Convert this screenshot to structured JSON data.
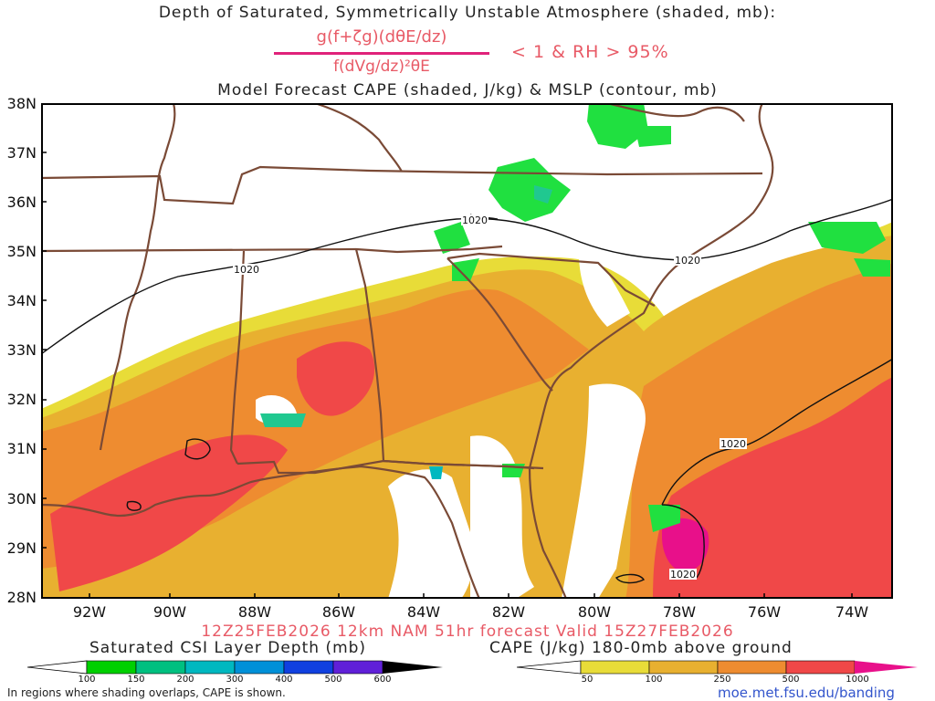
{
  "header": {
    "title_line1": "Depth of Saturated, Symmetrically Unstable Atmosphere (shaded, mb):",
    "formula_numerator": "g(f+ζg)(dθE/dz)",
    "formula_denominator": "f(dVg/dz)²θE",
    "formula_condition": "< 1 & RH > 95%",
    "title_line3": "Model Forecast CAPE (shaded, J/kg) & MSLP (contour, mb)"
  },
  "axes": {
    "lat_labels": [
      "38N",
      "37N",
      "36N",
      "35N",
      "34N",
      "33N",
      "32N",
      "31N",
      "30N",
      "29N",
      "28N"
    ],
    "lon_labels": [
      "92W",
      "90W",
      "88W",
      "86W",
      "84W",
      "82W",
      "80W",
      "78W",
      "76W",
      "74W"
    ]
  },
  "contours": {
    "isobar_label": "1020",
    "labels": [
      "1020",
      "1020",
      "1020",
      "1020",
      "1020"
    ]
  },
  "footer": {
    "valid_line": "12Z25FEB2026 12km NAM 51hr forecast Valid 15Z27FEB2026",
    "csi_title": "Saturated CSI Layer Depth (mb)",
    "csi_ticks": [
      "100",
      "150",
      "200",
      "300",
      "400",
      "500",
      "600"
    ],
    "csi_colors": [
      "#00d000",
      "#00c080",
      "#00b8c0",
      "#0090d8",
      "#1040e0",
      "#6020d8",
      "#000000"
    ],
    "cape_title": "CAPE (J/kg) 180-0mb above ground",
    "cape_ticks": [
      "50",
      "100",
      "250",
      "500",
      "1000"
    ],
    "cape_colors": [
      "#e8dc38",
      "#e8b030",
      "#ee8c30",
      "#f04848",
      "#e8108a"
    ],
    "note": "In regions where shading overlaps, CAPE is shown.",
    "url": "moe.met.fsu.edu/banding"
  },
  "colors": {
    "cape_50": "#e8dc38",
    "cape_100": "#e8b030",
    "cape_250": "#ee8c30",
    "cape_500": "#f04848",
    "cape_1000": "#e8108a",
    "csi_green": "#20e040",
    "csi_teal": "#20c890",
    "border": "#7a4a36",
    "title_red": "#e85a66"
  }
}
